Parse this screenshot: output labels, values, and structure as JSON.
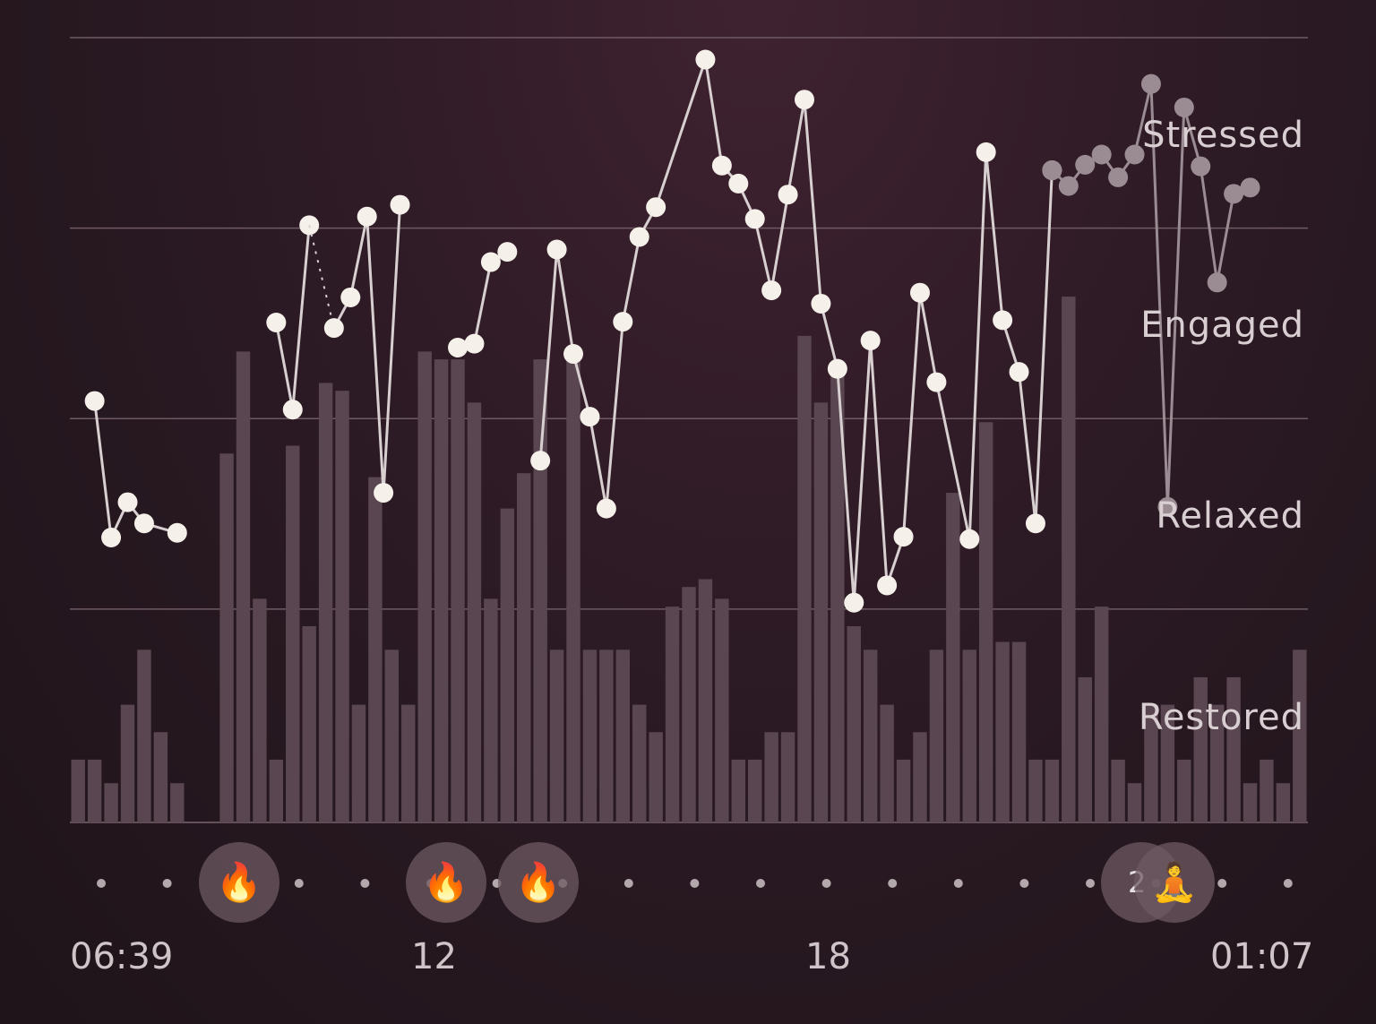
{
  "chart_data": {
    "type": "bar+line",
    "y_zones": [
      "Stressed",
      "Engaged",
      "Relaxed",
      "Restored"
    ],
    "x_labels": [
      "06:39",
      "12",
      "18",
      "01:07"
    ],
    "bars": [
      0.08,
      0.08,
      0.05,
      0.15,
      0.22,
      0.115,
      0.05,
      0,
      0,
      0.47,
      0.6,
      0.285,
      0.08,
      0.48,
      0.25,
      0.56,
      0.55,
      0.15,
      0.44,
      0.22,
      0.15,
      0.6,
      0.59,
      0.59,
      0.535,
      0.285,
      0.4,
      0.445,
      0.59,
      0.22,
      0.59,
      0.22,
      0.22,
      0.22,
      0.15,
      0.115,
      0.275,
      0.3,
      0.31,
      0.285,
      0.08,
      0.08,
      0.115,
      0.115,
      0.62,
      0.535,
      0.57,
      0.25,
      0.22,
      0.15,
      0.08,
      0.115,
      0.22,
      0.42,
      0.22,
      0.51,
      0.23,
      0.23,
      0.08,
      0.08,
      0.67,
      0.185,
      0.275,
      0.08,
      0.05,
      0.15,
      0.15,
      0.08,
      0.185,
      0.15,
      0.185,
      0.05,
      0.08,
      0.05,
      0.22
    ],
    "line_series": [
      {
        "points": [
          [
            1,
            0.537
          ],
          [
            2,
            0.363
          ],
          [
            3,
            0.408
          ],
          [
            4,
            0.381
          ],
          [
            6,
            0.369
          ]
        ]
      },
      {
        "points": [
          [
            12,
            0.637
          ],
          [
            13,
            0.526
          ],
          [
            14,
            0.761
          ]
        ]
      },
      {
        "points": [
          [
            14,
            0.761
          ],
          [
            15.5,
            0.63
          ]
        ],
        "style": "dotted"
      },
      {
        "points": [
          [
            15.5,
            0.63
          ],
          [
            16.5,
            0.669
          ],
          [
            17.5,
            0.772
          ],
          [
            18.5,
            0.42
          ],
          [
            19.5,
            0.787
          ]
        ]
      },
      {
        "points": [
          [
            23,
            0.605
          ],
          [
            24,
            0.61
          ],
          [
            25,
            0.714
          ],
          [
            26,
            0.727
          ]
        ]
      },
      {
        "points": [
          [
            28,
            0.461
          ],
          [
            29,
            0.73
          ],
          [
            30,
            0.597
          ],
          [
            31,
            0.517
          ],
          [
            32,
            0.4
          ],
          [
            33,
            0.638
          ],
          [
            34,
            0.746
          ],
          [
            35,
            0.784
          ],
          [
            38,
            0.972
          ],
          [
            39,
            0.837
          ],
          [
            40,
            0.814
          ],
          [
            41,
            0.769
          ],
          [
            42,
            0.678
          ],
          [
            43,
            0.8
          ],
          [
            44,
            0.921
          ],
          [
            45,
            0.661
          ],
          [
            46,
            0.578
          ],
          [
            47,
            0.28
          ],
          [
            48,
            0.614
          ],
          [
            49,
            0.302
          ],
          [
            50,
            0.364
          ],
          [
            51,
            0.675
          ],
          [
            52,
            0.561
          ],
          [
            54,
            0.361
          ],
          [
            55,
            0.854
          ],
          [
            56,
            0.64
          ],
          [
            57,
            0.574
          ],
          [
            58,
            0.381
          ],
          [
            59,
            0.831
          ]
        ]
      },
      {
        "points": [
          [
            59,
            0.831
          ],
          [
            60,
            0.811
          ],
          [
            61,
            0.838
          ],
          [
            62,
            0.851
          ],
          [
            63,
            0.822
          ],
          [
            64,
            0.851
          ],
          [
            65,
            0.941
          ],
          [
            66,
            0.402
          ],
          [
            67,
            0.911
          ],
          [
            68,
            0.836
          ],
          [
            69,
            0.688
          ],
          [
            70,
            0.801
          ],
          [
            71,
            0.809
          ]
        ],
        "style": "faded"
      }
    ]
  },
  "events": [
    {
      "icon": "flame-icon",
      "glyph": "🔥"
    },
    {
      "icon": "flame-icon",
      "glyph": "🔥"
    },
    {
      "icon": "flame-icon",
      "glyph": "🔥"
    },
    {
      "icon": "meditation-icon",
      "glyph": "🧘",
      "count": "2"
    }
  ],
  "colors": {
    "bar": "#5a4650",
    "line": "#d8cfd1",
    "dot": "#f6f0ea",
    "faded": "#9a8c92",
    "grid": "#6f5a63"
  }
}
